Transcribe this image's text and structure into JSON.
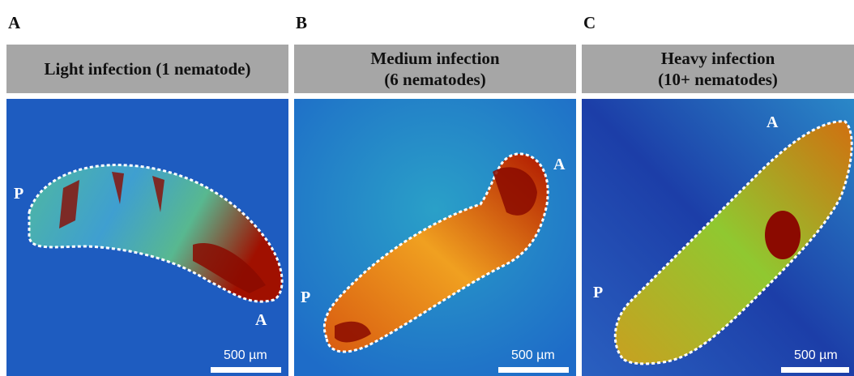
{
  "panels": [
    {
      "letter": "A",
      "title_lines": [
        "Light infection (1 nematode)"
      ],
      "labels": [
        "P",
        "A"
      ],
      "scale_bar": "500 µm"
    },
    {
      "letter": "B",
      "title_lines": [
        "Medium infection",
        "(6 nematodes)"
      ],
      "labels": [
        "P",
        "A"
      ],
      "scale_bar": "500 µm"
    },
    {
      "letter": "C",
      "title_lines": [
        "Heavy infection",
        "(10+ nematodes)"
      ],
      "labels": [
        "P",
        "A"
      ],
      "scale_bar": "500 µm"
    }
  ]
}
